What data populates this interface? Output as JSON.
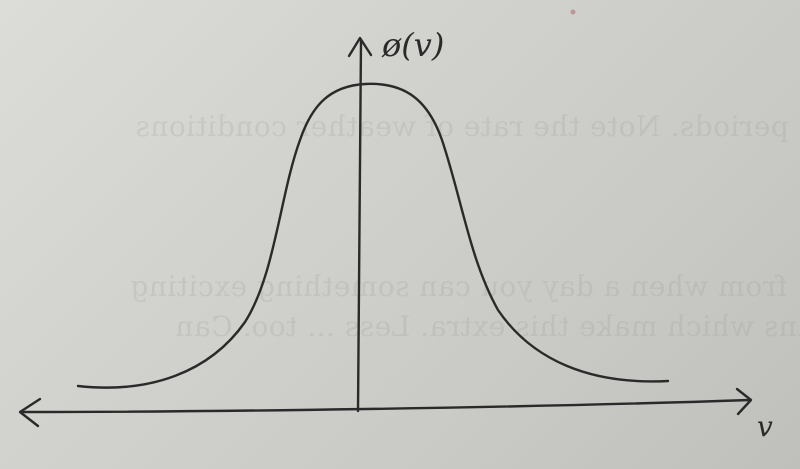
{
  "diagram": {
    "y_axis_label": "ø(v)",
    "x_axis_label": "v"
  },
  "bleed_through": {
    "line1": "periods. Note the rate of weather conditions",
    "line2": "from when a day you can something exciting",
    "line3": "plans which make this extra. Less ... too. Can"
  },
  "colors": {
    "ink": "#2a2a2a",
    "paper": "#d4d4d0"
  }
}
